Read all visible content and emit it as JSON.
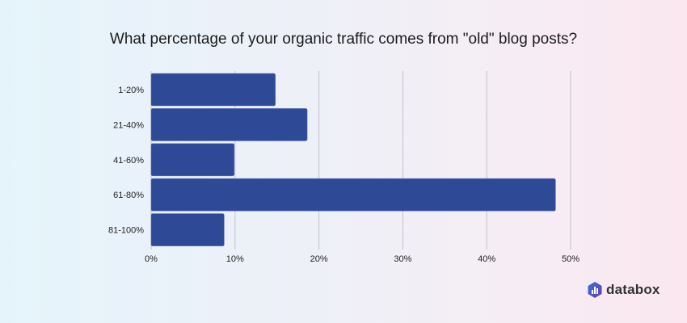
{
  "chart_data": {
    "type": "bar",
    "orientation": "horizontal",
    "title": "What percentage of your organic traffic comes from \"old\" blog posts?",
    "categories": [
      "1-20%",
      "21-40%",
      "41-60%",
      "61-80%",
      "81-100%"
    ],
    "values": [
      14.8,
      18.6,
      9.9,
      48.2,
      8.7
    ],
    "xlim": [
      0,
      50
    ],
    "xticks": [
      "0%",
      "10%",
      "20%",
      "30%",
      "40%",
      "50%"
    ],
    "xlabel": "",
    "ylabel": "",
    "grid": true,
    "bar_color": "#2e4995",
    "grid_color": "#c4bfc8"
  },
  "brand": {
    "name": "databox",
    "color": "#2e4995"
  }
}
